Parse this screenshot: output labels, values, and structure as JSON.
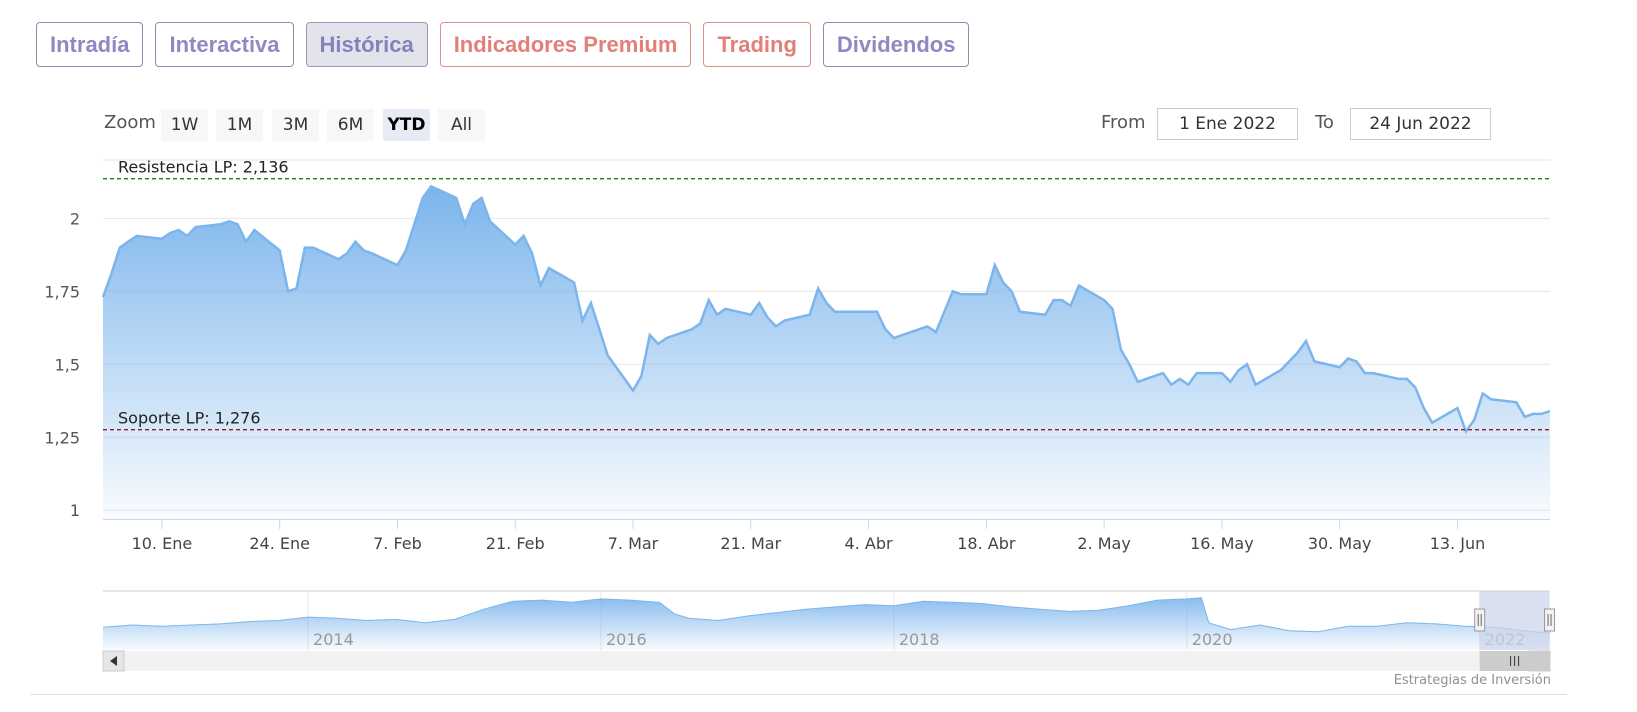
{
  "tabs": [
    {
      "label": "Intradía",
      "active": false,
      "type": "normal"
    },
    {
      "label": "Interactiva",
      "active": false,
      "type": "normal"
    },
    {
      "label": "Histórica",
      "active": true,
      "type": "normal"
    },
    {
      "label": "Indicadores Premium",
      "active": false,
      "type": "premium"
    },
    {
      "label": "Trading",
      "active": false,
      "type": "premium"
    },
    {
      "label": "Dividendos",
      "active": false,
      "type": "normal"
    }
  ],
  "range_selector": {
    "zoom_label": "Zoom",
    "buttons": [
      {
        "label": "1W",
        "active": false
      },
      {
        "label": "1M",
        "active": false
      },
      {
        "label": "3M",
        "active": false
      },
      {
        "label": "6M",
        "active": false
      },
      {
        "label": "YTD",
        "active": true
      },
      {
        "label": "All",
        "active": false
      }
    ],
    "from_label": "From",
    "from_value": "1 Ene 2022",
    "to_label": "To",
    "to_value": "24 Jun 2022"
  },
  "credits": "Estrategias de Inversión",
  "colors": {
    "series_line": "#7cb5ec",
    "resistance_line": "#1a7a1a",
    "support_line": "#8b1a2a",
    "navigator_mask": "#ccd6eb"
  },
  "chart_data": {
    "type": "area",
    "title": "",
    "xlabel": "",
    "ylabel": "",
    "x_ticks": [
      "10. Ene",
      "24. Ene",
      "7. Feb",
      "21. Feb",
      "7. Mar",
      "21. Mar",
      "4. Abr",
      "18. Abr",
      "2. May",
      "16. May",
      "30. May",
      "13. Jun"
    ],
    "y_ticks": [
      "1",
      "1,25",
      "1,5",
      "1,75",
      "2"
    ],
    "y_tick_values": [
      1,
      1.25,
      1.5,
      1.75,
      2
    ],
    "ylim": [
      0.97,
      2.2
    ],
    "xlim": [
      "2022-01-03",
      "2022-06-24"
    ],
    "grid": true,
    "plot_lines": [
      {
        "label": "Resistencia LP: 2,136",
        "value": 2.136,
        "style": "dashed",
        "color": "green"
      },
      {
        "label": "Soporte LP: 1,276",
        "value": 1.276,
        "style": "dashed",
        "color": "darkred"
      }
    ],
    "series": [
      {
        "points": [
          [
            "2022-01-03",
            1.73
          ],
          [
            "2022-01-04",
            1.81
          ],
          [
            "2022-01-05",
            1.9
          ],
          [
            "2022-01-06",
            1.92
          ],
          [
            "2022-01-07",
            1.94
          ],
          [
            "2022-01-10",
            1.93
          ],
          [
            "2022-01-11",
            1.95
          ],
          [
            "2022-01-12",
            1.96
          ],
          [
            "2022-01-13",
            1.94
          ],
          [
            "2022-01-14",
            1.97
          ],
          [
            "2022-01-17",
            1.98
          ],
          [
            "2022-01-18",
            1.99
          ],
          [
            "2022-01-19",
            1.98
          ],
          [
            "2022-01-20",
            1.92
          ],
          [
            "2022-01-21",
            1.96
          ],
          [
            "2022-01-24",
            1.89
          ],
          [
            "2022-01-25",
            1.75
          ],
          [
            "2022-01-26",
            1.76
          ],
          [
            "2022-01-27",
            1.9
          ],
          [
            "2022-01-28",
            1.9
          ],
          [
            "2022-01-31",
            1.86
          ],
          [
            "2022-02-01",
            1.88
          ],
          [
            "2022-02-02",
            1.92
          ],
          [
            "2022-02-03",
            1.89
          ],
          [
            "2022-02-04",
            1.88
          ],
          [
            "2022-02-07",
            1.84
          ],
          [
            "2022-02-08",
            1.89
          ],
          [
            "2022-02-09",
            1.98
          ],
          [
            "2022-02-10",
            2.07
          ],
          [
            "2022-02-11",
            2.11
          ],
          [
            "2022-02-14",
            2.07
          ],
          [
            "2022-02-15",
            1.98
          ],
          [
            "2022-02-16",
            2.05
          ],
          [
            "2022-02-17",
            2.07
          ],
          [
            "2022-02-18",
            1.99
          ],
          [
            "2022-02-21",
            1.91
          ],
          [
            "2022-02-22",
            1.94
          ],
          [
            "2022-02-23",
            1.88
          ],
          [
            "2022-02-24",
            1.77
          ],
          [
            "2022-02-25",
            1.83
          ],
          [
            "2022-02-28",
            1.78
          ],
          [
            "2022-03-01",
            1.65
          ],
          [
            "2022-03-02",
            1.71
          ],
          [
            "2022-03-03",
            1.62
          ],
          [
            "2022-03-04",
            1.53
          ],
          [
            "2022-03-07",
            1.41
          ],
          [
            "2022-03-08",
            1.46
          ],
          [
            "2022-03-09",
            1.6
          ],
          [
            "2022-03-10",
            1.57
          ],
          [
            "2022-03-11",
            1.59
          ],
          [
            "2022-03-14",
            1.62
          ],
          [
            "2022-03-15",
            1.64
          ],
          [
            "2022-03-16",
            1.72
          ],
          [
            "2022-03-17",
            1.67
          ],
          [
            "2022-03-18",
            1.69
          ],
          [
            "2022-03-21",
            1.67
          ],
          [
            "2022-03-22",
            1.71
          ],
          [
            "2022-03-23",
            1.66
          ],
          [
            "2022-03-24",
            1.63
          ],
          [
            "2022-03-25",
            1.65
          ],
          [
            "2022-03-28",
            1.67
          ],
          [
            "2022-03-29",
            1.76
          ],
          [
            "2022-03-30",
            1.71
          ],
          [
            "2022-03-31",
            1.68
          ],
          [
            "2022-04-01",
            1.68
          ],
          [
            "2022-04-04",
            1.68
          ],
          [
            "2022-04-05",
            1.68
          ],
          [
            "2022-04-06",
            1.62
          ],
          [
            "2022-04-07",
            1.59
          ],
          [
            "2022-04-08",
            1.6
          ],
          [
            "2022-04-11",
            1.63
          ],
          [
            "2022-04-12",
            1.61
          ],
          [
            "2022-04-13",
            1.68
          ],
          [
            "2022-04-14",
            1.75
          ],
          [
            "2022-04-15",
            1.74
          ],
          [
            "2022-04-18",
            1.74
          ],
          [
            "2022-04-19",
            1.84
          ],
          [
            "2022-04-20",
            1.78
          ],
          [
            "2022-04-21",
            1.75
          ],
          [
            "2022-04-22",
            1.68
          ],
          [
            "2022-04-25",
            1.67
          ],
          [
            "2022-04-26",
            1.72
          ],
          [
            "2022-04-27",
            1.72
          ],
          [
            "2022-04-28",
            1.7
          ],
          [
            "2022-04-29",
            1.77
          ],
          [
            "2022-05-02",
            1.72
          ],
          [
            "2022-05-03",
            1.69
          ],
          [
            "2022-05-04",
            1.55
          ],
          [
            "2022-05-05",
            1.5
          ],
          [
            "2022-05-06",
            1.44
          ],
          [
            "2022-05-09",
            1.47
          ],
          [
            "2022-05-10",
            1.43
          ],
          [
            "2022-05-11",
            1.45
          ],
          [
            "2022-05-12",
            1.43
          ],
          [
            "2022-05-13",
            1.47
          ],
          [
            "2022-05-16",
            1.47
          ],
          [
            "2022-05-17",
            1.44
          ],
          [
            "2022-05-18",
            1.48
          ],
          [
            "2022-05-19",
            1.5
          ],
          [
            "2022-05-20",
            1.43
          ],
          [
            "2022-05-23",
            1.48
          ],
          [
            "2022-05-24",
            1.51
          ],
          [
            "2022-05-25",
            1.54
          ],
          [
            "2022-05-26",
            1.58
          ],
          [
            "2022-05-27",
            1.51
          ],
          [
            "2022-05-30",
            1.49
          ],
          [
            "2022-05-31",
            1.52
          ],
          [
            "2022-06-01",
            1.51
          ],
          [
            "2022-06-02",
            1.47
          ],
          [
            "2022-06-03",
            1.47
          ],
          [
            "2022-06-06",
            1.45
          ],
          [
            "2022-06-07",
            1.45
          ],
          [
            "2022-06-08",
            1.42
          ],
          [
            "2022-06-09",
            1.35
          ],
          [
            "2022-06-10",
            1.3
          ],
          [
            "2022-06-13",
            1.35
          ],
          [
            "2022-06-14",
            1.27
          ],
          [
            "2022-06-15",
            1.31
          ],
          [
            "2022-06-16",
            1.4
          ],
          [
            "2022-06-17",
            1.38
          ],
          [
            "2022-06-20",
            1.37
          ],
          [
            "2022-06-21",
            1.32
          ],
          [
            "2022-06-22",
            1.33
          ],
          [
            "2022-06-23",
            1.33
          ],
          [
            "2022-06-24",
            1.34
          ]
        ]
      }
    ],
    "navigator": {
      "x_ticks": [
        "2014",
        "2016",
        "2018",
        "2020",
        "2022"
      ],
      "start_year": 2012.6,
      "end_year": 2022.48,
      "selected_range": [
        "2022-01-01",
        "2022-06-24"
      ],
      "ylim": [
        0.8,
        3.4
      ],
      "series": [
        [
          2012.6,
          1.8
        ],
        [
          2012.8,
          1.9
        ],
        [
          2013.0,
          1.85
        ],
        [
          2013.2,
          1.9
        ],
        [
          2013.4,
          1.95
        ],
        [
          2013.6,
          2.05
        ],
        [
          2013.8,
          2.1
        ],
        [
          2014.0,
          2.25
        ],
        [
          2014.2,
          2.2
        ],
        [
          2014.4,
          2.1
        ],
        [
          2014.6,
          2.15
        ],
        [
          2014.8,
          2.0
        ],
        [
          2015.0,
          2.15
        ],
        [
          2015.2,
          2.6
        ],
        [
          2015.4,
          2.95
        ],
        [
          2015.6,
          3.0
        ],
        [
          2015.8,
          2.9
        ],
        [
          2016.0,
          3.05
        ],
        [
          2016.2,
          3.0
        ],
        [
          2016.4,
          2.9
        ],
        [
          2016.5,
          2.4
        ],
        [
          2016.6,
          2.2
        ],
        [
          2016.8,
          2.1
        ],
        [
          2017.0,
          2.3
        ],
        [
          2017.2,
          2.45
        ],
        [
          2017.4,
          2.6
        ],
        [
          2017.6,
          2.7
        ],
        [
          2017.8,
          2.8
        ],
        [
          2018.0,
          2.75
        ],
        [
          2018.2,
          2.95
        ],
        [
          2018.4,
          2.9
        ],
        [
          2018.6,
          2.85
        ],
        [
          2018.8,
          2.7
        ],
        [
          2019.0,
          2.6
        ],
        [
          2019.2,
          2.5
        ],
        [
          2019.4,
          2.55
        ],
        [
          2019.6,
          2.75
        ],
        [
          2019.8,
          3.0
        ],
        [
          2020.0,
          3.05
        ],
        [
          2020.1,
          3.1
        ],
        [
          2020.15,
          2.0
        ],
        [
          2020.3,
          1.7
        ],
        [
          2020.5,
          1.9
        ],
        [
          2020.7,
          1.65
        ],
        [
          2020.9,
          1.6
        ],
        [
          2021.1,
          1.85
        ],
        [
          2021.3,
          1.85
        ],
        [
          2021.5,
          2.0
        ],
        [
          2021.7,
          1.95
        ],
        [
          2021.9,
          1.85
        ],
        [
          2022.1,
          1.8
        ],
        [
          2022.3,
          1.65
        ],
        [
          2022.48,
          1.55
        ]
      ]
    }
  }
}
